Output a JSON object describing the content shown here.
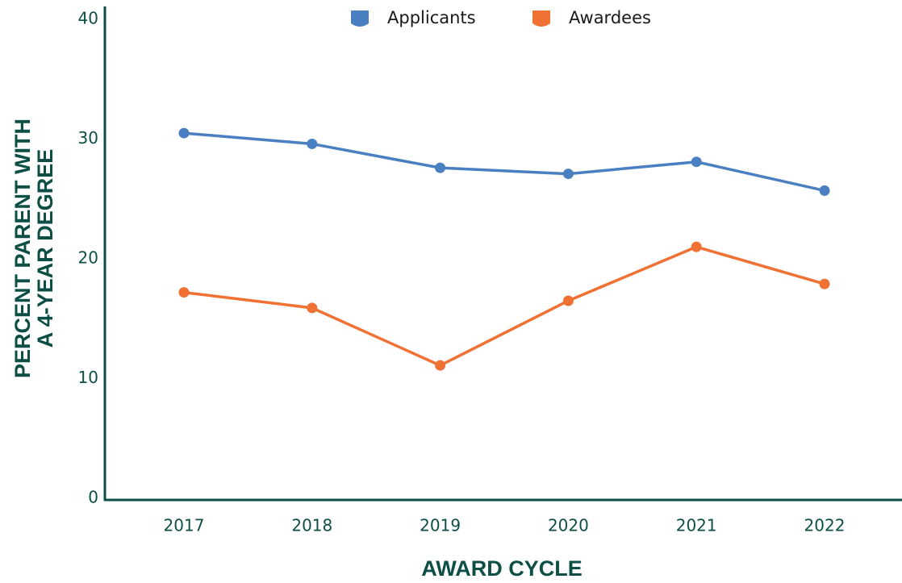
{
  "chart_data": {
    "type": "line",
    "xlabel": "AWARD CYCLE",
    "ylabel": [
      "PERCENT PARENT WITH",
      "A 4-YEAR DEGREE"
    ],
    "categories": [
      "2017",
      "2018",
      "2019",
      "2020",
      "2021",
      "2022"
    ],
    "series": [
      {
        "name": "Applicants",
        "color": "#4a7fc1",
        "values": [
          30.5,
          29.6,
          27.6,
          27.1,
          28.1,
          25.7
        ]
      },
      {
        "name": "Awardees",
        "color": "#ef7234",
        "values": [
          17.2,
          15.9,
          11.1,
          16.5,
          21.0,
          17.9
        ]
      }
    ],
    "ylim": [
      0,
      40
    ],
    "yticks": [
      0,
      10,
      20,
      30,
      40
    ],
    "grid": false,
    "legend": "top"
  }
}
